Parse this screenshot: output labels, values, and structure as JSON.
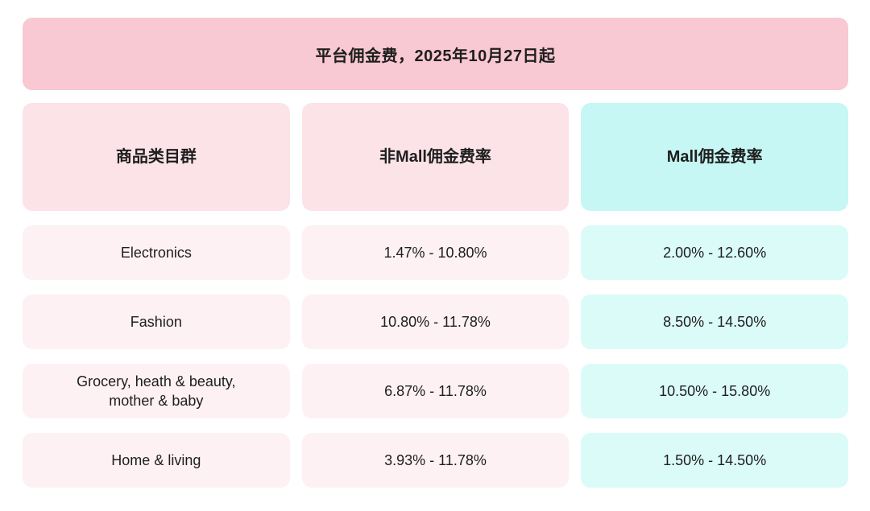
{
  "banner": {
    "title": "平台佣金费，2025年10月27日起"
  },
  "table": {
    "columns": [
      {
        "label": "商品类目群"
      },
      {
        "label": "非Mall佣金费率"
      },
      {
        "label": "Mall佣金费率"
      }
    ],
    "rows": [
      {
        "category": "Electronics",
        "non_mall_rate": "1.47% - 10.80%",
        "mall_rate": "2.00% - 12.60%"
      },
      {
        "category": "Fashion",
        "non_mall_rate": "10.80% - 11.78%",
        "mall_rate": "8.50% - 14.50%"
      },
      {
        "category": "Grocery, heath & beauty, mother & baby",
        "non_mall_rate": "6.87% - 11.78%",
        "mall_rate": "10.50% - 15.80%"
      },
      {
        "category": "Home & living",
        "non_mall_rate": "3.93% - 11.78%",
        "mall_rate": "1.50% - 14.50%"
      }
    ]
  },
  "colors": {
    "banner_bg": "#f8c8d3",
    "header_pink_bg": "#fbe3e8",
    "header_cyan_bg": "#c6f7f4",
    "cell_pink_bg": "#fdf1f3",
    "cell_cyan_bg": "#dbfbf9",
    "text": "#1e1e1e",
    "page_bg": "#ffffff"
  }
}
